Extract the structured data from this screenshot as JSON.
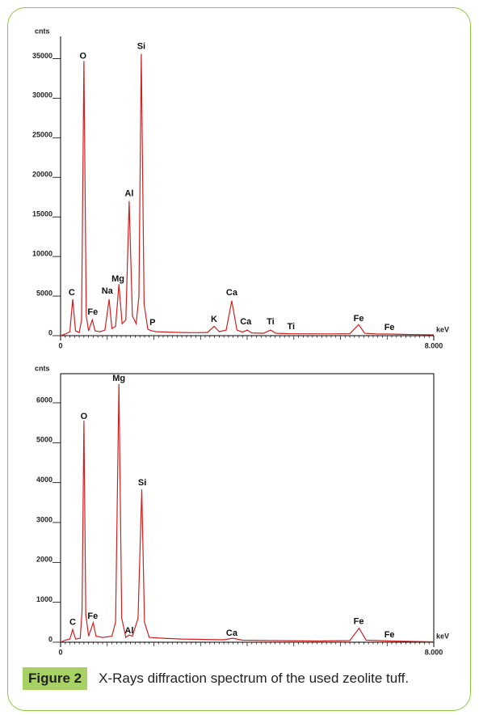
{
  "chart_data": [
    {
      "type": "line",
      "ylabel": "cnts",
      "xlabel": "keV",
      "color": "#d02020",
      "frame": false,
      "xlim": [
        0,
        8
      ],
      "ylim": [
        0,
        37800
      ],
      "xticks": [
        0,
        {
          "value": 8,
          "label": "8.000"
        }
      ],
      "yticks": [
        0,
        5000,
        10000,
        15000,
        20000,
        25000,
        30000,
        35000
      ],
      "x": [
        0,
        0.1,
        0.2,
        0.26,
        0.32,
        0.4,
        0.45,
        0.5,
        0.55,
        0.6,
        0.68,
        0.74,
        0.85,
        0.95,
        1.04,
        1.1,
        1.18,
        1.25,
        1.32,
        1.4,
        1.47,
        1.54,
        1.62,
        1.68,
        1.73,
        1.79,
        1.87,
        1.96,
        2.05,
        2.3,
        2.6,
        2.9,
        3.15,
        3.29,
        3.4,
        3.55,
        3.67,
        3.78,
        3.9,
        4.0,
        4.1,
        4.35,
        4.5,
        4.62,
        4.9,
        5.3,
        5.8,
        6.2,
        6.39,
        6.52,
        6.8,
        7.05,
        7.4,
        7.8,
        8.0
      ],
      "series": [
        {
          "values": [
            0,
            200,
            500,
            4600,
            600,
            400,
            2000,
            34700,
            2500,
            600,
            2000,
            600,
            500,
            700,
            4600,
            900,
            1200,
            6500,
            1500,
            2000,
            17000,
            2500,
            1500,
            5000,
            35600,
            4000,
            800,
            600,
            500,
            450,
            400,
            380,
            400,
            1200,
            500,
            700,
            4400,
            700,
            450,
            700,
            350,
            300,
            700,
            300,
            250,
            230,
            220,
            250,
            1400,
            300,
            200,
            200,
            150,
            120,
            100
          ]
        }
      ],
      "annotations": [
        {
          "text": "C",
          "x": 0.24,
          "y": 5420
        },
        {
          "text": "O",
          "x": 0.48,
          "y": 35300
        },
        {
          "text": "Fe",
          "x": 0.69,
          "y": 2970
        },
        {
          "text": "Na",
          "x": 1.0,
          "y": 5630
        },
        {
          "text": "Mg",
          "x": 1.23,
          "y": 7160
        },
        {
          "text": "Al",
          "x": 1.47,
          "y": 17900
        },
        {
          "text": "Si",
          "x": 1.73,
          "y": 36500
        },
        {
          "text": "P",
          "x": 1.97,
          "y": 1640
        },
        {
          "text": "K",
          "x": 3.29,
          "y": 2050
        },
        {
          "text": "Ca",
          "x": 3.67,
          "y": 5420
        },
        {
          "text": "Ca",
          "x": 3.97,
          "y": 1740
        },
        {
          "text": "Ti",
          "x": 4.5,
          "y": 1740
        },
        {
          "text": "Ti",
          "x": 4.94,
          "y": 1130
        },
        {
          "text": "Fe",
          "x": 6.39,
          "y": 2150
        },
        {
          "text": "Fe",
          "x": 7.05,
          "y": 1020
        }
      ]
    },
    {
      "type": "line",
      "ylabel": "cnts",
      "xlabel": "keV",
      "color": "#d02020",
      "frame": true,
      "xlim": [
        0,
        8
      ],
      "ylim": [
        0,
        6730
      ],
      "xticks": [
        0,
        {
          "value": 8,
          "label": "8.000"
        }
      ],
      "yticks": [
        0,
        1000,
        2000,
        3000,
        4000,
        5000,
        6000
      ],
      "x": [
        0,
        0.1,
        0.2,
        0.26,
        0.32,
        0.42,
        0.46,
        0.5,
        0.54,
        0.6,
        0.7,
        0.76,
        0.9,
        1.1,
        1.18,
        1.25,
        1.31,
        1.4,
        1.47,
        1.54,
        1.66,
        1.74,
        1.8,
        1.9,
        2.2,
        2.6,
        3.0,
        3.5,
        3.69,
        3.9,
        4.5,
        5.5,
        6.2,
        6.4,
        6.55,
        7.05,
        8.0
      ],
      "series": [
        {
          "values": [
            0,
            50,
            80,
            320,
            80,
            100,
            800,
            5550,
            700,
            150,
            490,
            150,
            120,
            150,
            500,
            6470,
            600,
            120,
            180,
            150,
            600,
            3830,
            500,
            120,
            100,
            80,
            70,
            60,
            100,
            50,
            40,
            30,
            40,
            350,
            50,
            30,
            10
          ]
        }
      ],
      "annotations": [
        {
          "text": "C",
          "x": 0.26,
          "y": 490
        },
        {
          "text": "O",
          "x": 0.5,
          "y": 5650
        },
        {
          "text": "Fe",
          "x": 0.69,
          "y": 650
        },
        {
          "text": "Mg",
          "x": 1.25,
          "y": 6610
        },
        {
          "text": "Al",
          "x": 1.47,
          "y": 280
        },
        {
          "text": "Si",
          "x": 1.75,
          "y": 3990
        },
        {
          "text": "Ca",
          "x": 3.67,
          "y": 220
        },
        {
          "text": "Fe",
          "x": 6.39,
          "y": 510
        },
        {
          "text": "Fe",
          "x": 7.05,
          "y": 180
        }
      ]
    }
  ],
  "caption": {
    "label": "Figure 2",
    "text": "X-Rays diffraction spectrum of the used zeolite tuff."
  }
}
